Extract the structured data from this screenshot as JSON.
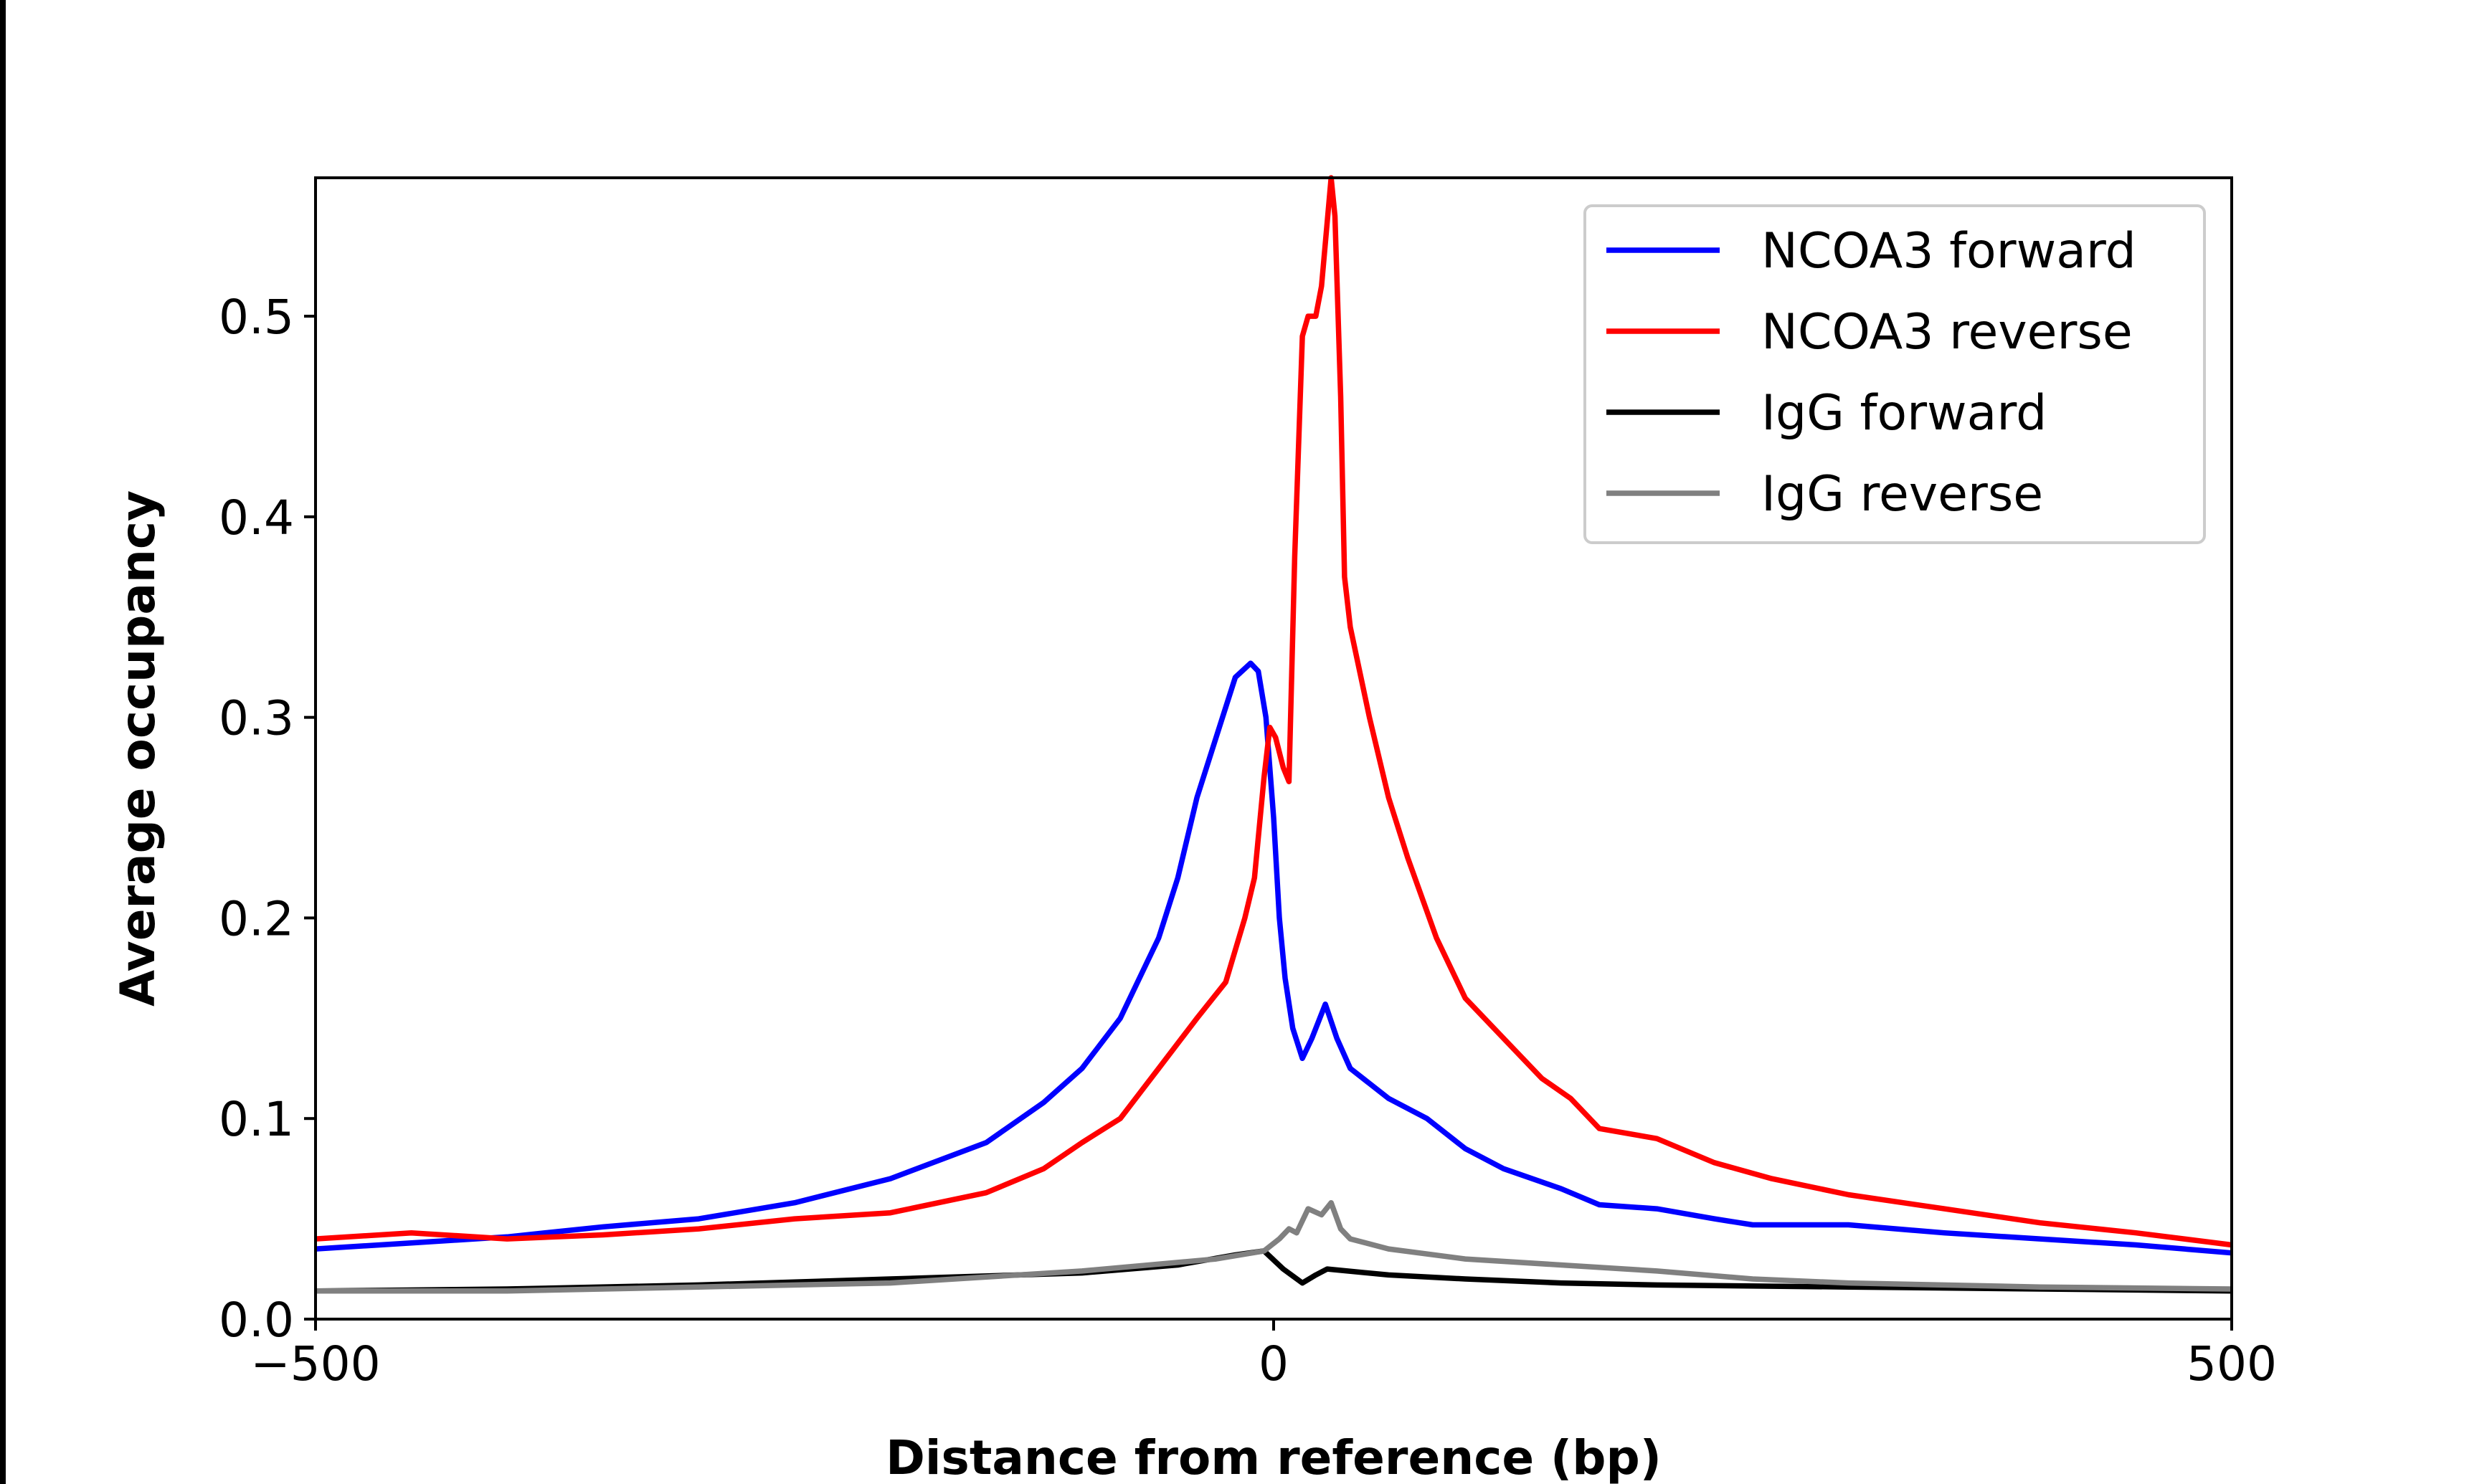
{
  "chart_data": {
    "type": "line",
    "title": "",
    "xlabel": "Distance from reference (bp)",
    "ylabel": "Average occupancy",
    "xlim": [
      -500,
      500
    ],
    "ylim": [
      0,
      0.569
    ],
    "xticks": [
      -500,
      0,
      500
    ],
    "xtick_labels": [
      "−500",
      "0",
      "500"
    ],
    "yticks": [
      0.0,
      0.1,
      0.2,
      0.3,
      0.4,
      0.5
    ],
    "ytick_labels": [
      "0.0",
      "0.1",
      "0.2",
      "0.3",
      "0.4",
      "0.5"
    ],
    "grid": false,
    "legend_position": "top-right",
    "series": [
      {
        "name": "NCOA3 forward",
        "color": "#0000ff",
        "x": [
          -500,
          -450,
          -400,
          -350,
          -300,
          -250,
          -200,
          -150,
          -120,
          -100,
          -80,
          -60,
          -50,
          -40,
          -30,
          -20,
          -12,
          -8,
          -4,
          0,
          3,
          6,
          10,
          15,
          20,
          27,
          33,
          40,
          60,
          80,
          100,
          120,
          150,
          170,
          200,
          230,
          250,
          300,
          350,
          400,
          450,
          500
        ],
        "y": [
          0.035,
          0.038,
          0.041,
          0.046,
          0.05,
          0.058,
          0.07,
          0.088,
          0.108,
          0.125,
          0.15,
          0.19,
          0.22,
          0.26,
          0.29,
          0.32,
          0.327,
          0.323,
          0.3,
          0.25,
          0.2,
          0.17,
          0.145,
          0.13,
          0.14,
          0.157,
          0.14,
          0.125,
          0.11,
          0.1,
          0.085,
          0.075,
          0.065,
          0.057,
          0.055,
          0.05,
          0.047,
          0.047,
          0.043,
          0.04,
          0.037,
          0.033
        ]
      },
      {
        "name": "NCOA3 reverse",
        "color": "#ff0000",
        "x": [
          -500,
          -450,
          -400,
          -350,
          -300,
          -250,
          -200,
          -150,
          -120,
          -100,
          -80,
          -60,
          -40,
          -25,
          -15,
          -10,
          -5,
          -2,
          1,
          5,
          8,
          11,
          15,
          18,
          22,
          25,
          30,
          32,
          35,
          37,
          40,
          50,
          60,
          70,
          85,
          100,
          120,
          140,
          155,
          170,
          200,
          230,
          260,
          300,
          350,
          400,
          450,
          500
        ],
        "y": [
          0.04,
          0.043,
          0.04,
          0.042,
          0.045,
          0.05,
          0.053,
          0.063,
          0.075,
          0.088,
          0.1,
          0.125,
          0.15,
          0.168,
          0.2,
          0.22,
          0.27,
          0.295,
          0.29,
          0.275,
          0.268,
          0.38,
          0.49,
          0.5,
          0.5,
          0.515,
          0.569,
          0.55,
          0.46,
          0.37,
          0.345,
          0.3,
          0.26,
          0.23,
          0.19,
          0.16,
          0.14,
          0.12,
          0.11,
          0.095,
          0.09,
          0.078,
          0.07,
          0.062,
          0.055,
          0.048,
          0.043,
          0.037
        ]
      },
      {
        "name": "IgG forward",
        "color": "#000000",
        "x": [
          -500,
          -400,
          -300,
          -200,
          -100,
          -50,
          -20,
          -5,
          5,
          15,
          22,
          28,
          60,
          100,
          150,
          200,
          300,
          400,
          500
        ],
        "y": [
          0.014,
          0.015,
          0.017,
          0.02,
          0.023,
          0.027,
          0.032,
          0.034,
          0.025,
          0.018,
          0.022,
          0.025,
          0.022,
          0.02,
          0.018,
          0.017,
          0.016,
          0.015,
          0.014
        ]
      },
      {
        "name": "IgG reverse",
        "color": "#808080",
        "x": [
          -500,
          -400,
          -300,
          -200,
          -100,
          -30,
          -5,
          3,
          8,
          12,
          18,
          25,
          30,
          35,
          40,
          60,
          100,
          150,
          200,
          250,
          300,
          400,
          500
        ],
        "y": [
          0.014,
          0.014,
          0.016,
          0.018,
          0.024,
          0.03,
          0.034,
          0.04,
          0.045,
          0.043,
          0.055,
          0.052,
          0.058,
          0.045,
          0.04,
          0.035,
          0.03,
          0.027,
          0.024,
          0.02,
          0.018,
          0.016,
          0.015
        ]
      }
    ]
  }
}
